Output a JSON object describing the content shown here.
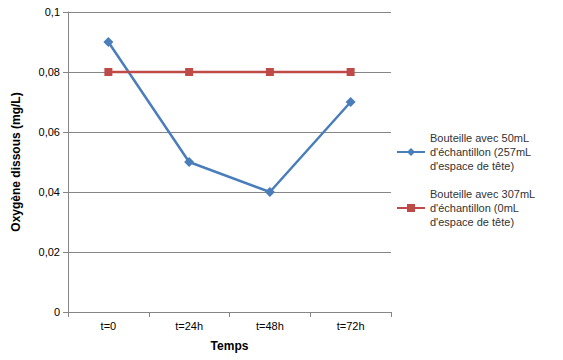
{
  "chart_data": {
    "type": "line",
    "x_label": "Temps",
    "y_label": "Oxygène dissous (mg/L)",
    "categories": [
      "t=0",
      "t=24h",
      "t=48h",
      "t=72h"
    ],
    "series": [
      {
        "name": "Bouteille avec 50mL d'échantillon (257mL d'espace de tête)",
        "color": "#4a7ebb",
        "marker": "diamond",
        "line_style": "solid",
        "values": [
          0.09,
          0.05,
          0.04,
          0.07
        ]
      },
      {
        "name": "Bouteille avec 307mL d'échantillon (0mL d'espace de tête)",
        "color": "#be4b48",
        "marker": "square",
        "line_style": "solid",
        "values": [
          0.08,
          0.08,
          0.08,
          0.08
        ]
      }
    ],
    "ylim": [
      0,
      0.1
    ],
    "yticks": [
      0,
      {
        "value": 0.02,
        "label": "0,02"
      },
      {
        "value": 0.04,
        "label": "0,04"
      },
      {
        "value": 0.06,
        "label": "0,06"
      },
      {
        "value": 0.08,
        "label": "0,08"
      },
      {
        "value": 0.1,
        "label": "0,1"
      }
    ],
    "grid": true,
    "legend": "right"
  }
}
